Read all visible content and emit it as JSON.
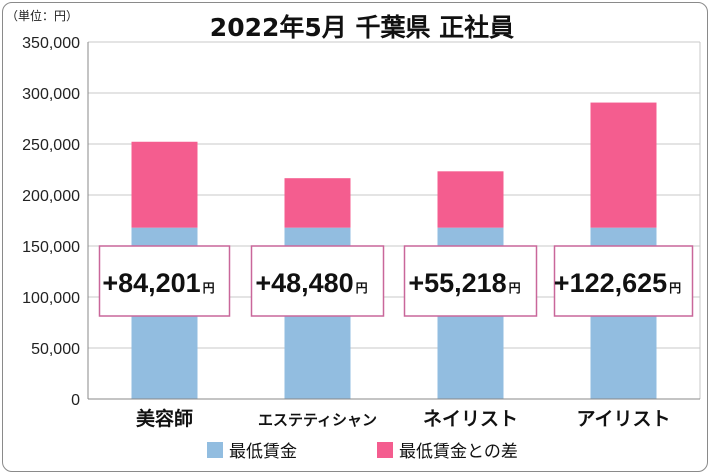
{
  "chart_data": {
    "type": "bar",
    "stacked": true,
    "title": "2022年5月 千葉県 正社員",
    "unit_label": "（単位：円）",
    "categories": [
      "美容師",
      "エステティシャン",
      "ネイリスト",
      "アイリスト"
    ],
    "series": [
      {
        "name": "最低賃金",
        "color": "#92bde0",
        "values": [
          168000,
          168000,
          168000,
          168000
        ]
      },
      {
        "name": "最低賃金との差",
        "color": "#f45d8f",
        "values": [
          84201,
          48480,
          55218,
          122625
        ]
      }
    ],
    "callouts": [
      "+84,201",
      "+48,480",
      "+55,218",
      "+122,625"
    ],
    "callout_unit": "円",
    "y_ticks": [
      "0",
      "50,000",
      "100,000",
      "150,000",
      "200,000",
      "250,000",
      "300,000",
      "350,000"
    ],
    "ylim": [
      0,
      350000
    ],
    "grid": true,
    "legend_position": "bottom"
  }
}
